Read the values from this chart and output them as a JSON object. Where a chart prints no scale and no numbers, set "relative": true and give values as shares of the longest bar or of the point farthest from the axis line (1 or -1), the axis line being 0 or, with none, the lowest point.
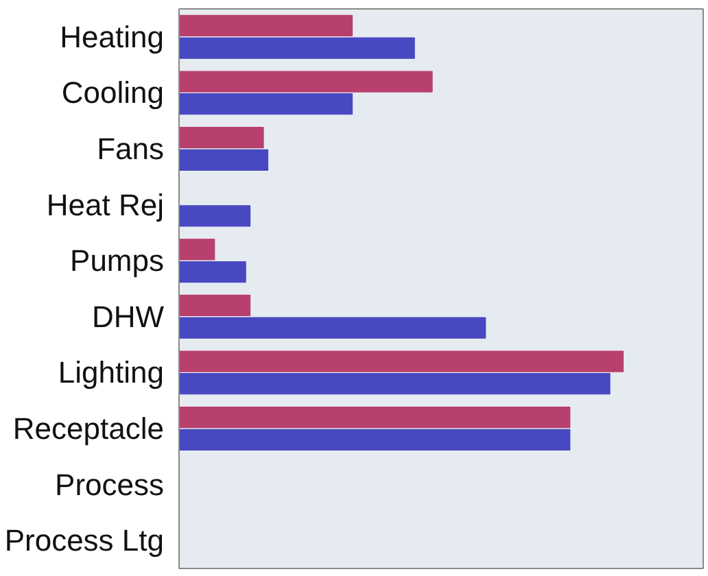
{
  "chart_data": {
    "type": "bar",
    "orientation": "horizontal",
    "relative": true,
    "categories": [
      "Heating",
      "Cooling",
      "Fans",
      "Heat Rej",
      "Pumps",
      "DHW",
      "Lighting",
      "Receptacle",
      "Process",
      "Process Ltg"
    ],
    "series": [
      {
        "color": "#b8406e",
        "values": [
          0.39,
          0.57,
          0.19,
          0,
          0.08,
          0.16,
          1,
          0.88,
          0,
          0
        ]
      },
      {
        "color": "#4848c0",
        "values": [
          0.53,
          0.39,
          0.2,
          0.16,
          0.15,
          0.69,
          0.97,
          0.88,
          0,
          0
        ]
      }
    ],
    "grid": false
  }
}
